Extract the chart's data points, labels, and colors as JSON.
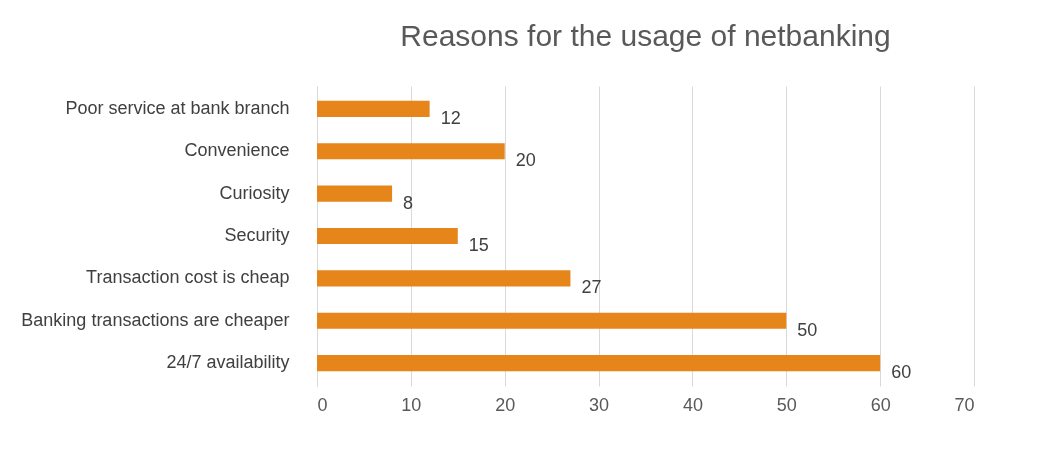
{
  "chart_data": {
    "type": "bar",
    "orientation": "horizontal",
    "title": "Reasons for the usage of netbanking",
    "categories": [
      "Poor service at bank branch",
      "Convenience",
      "Curiosity",
      "Security",
      "Transaction cost is cheap",
      "Banking transactions are cheaper",
      "24/7 availability"
    ],
    "values": [
      12,
      20,
      8,
      15,
      27,
      50,
      60
    ],
    "color": "#e6851a",
    "xlim": [
      0,
      70
    ],
    "xticks": [
      0,
      10,
      20,
      30,
      40,
      50,
      60,
      70
    ],
    "grid": "x",
    "data_labels": true
  }
}
